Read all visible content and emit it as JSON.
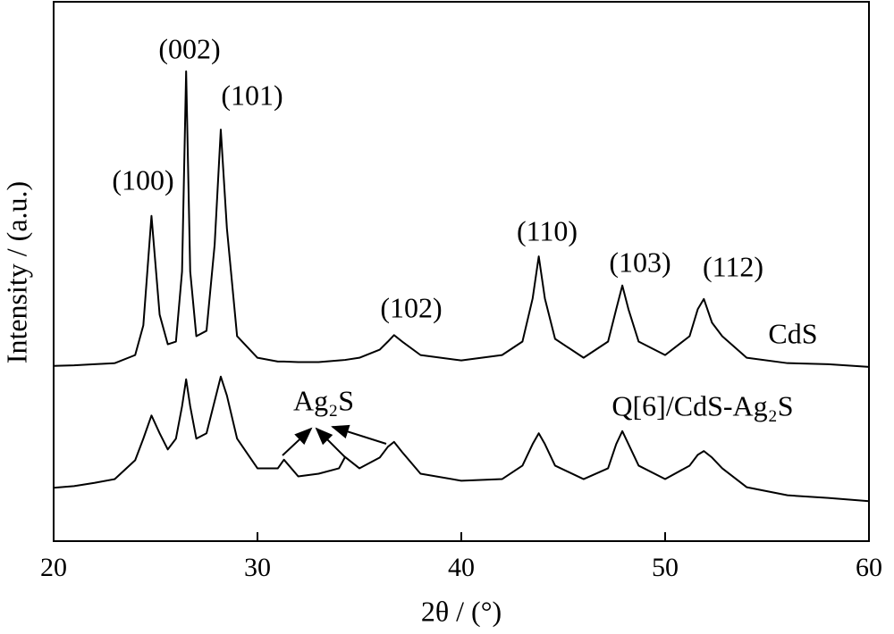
{
  "chart_data": {
    "type": "line",
    "xlabel": "2θ / (°)",
    "ylabel": "Intensity / (a.u.)",
    "xlim": [
      20,
      60
    ],
    "xticks": [
      20,
      30,
      40,
      50,
      60
    ],
    "ylim": [
      0,
      100
    ],
    "yticks": [],
    "x": [
      20,
      21,
      22,
      23,
      24,
      24.4,
      24.8,
      25.2,
      25.6,
      26.0,
      26.3,
      26.5,
      26.7,
      27.0,
      27.5,
      27.9,
      28.2,
      28.5,
      29.0,
      30,
      31,
      31.3,
      32,
      33,
      34,
      34.3,
      35,
      36,
      36.4,
      36.7,
      37.1,
      38,
      40,
      42,
      43,
      43.5,
      43.8,
      44.1,
      44.6,
      46,
      47.2,
      47.6,
      47.9,
      48.2,
      48.7,
      50,
      51.2,
      51.6,
      51.9,
      52.3,
      52.8,
      54,
      56,
      58,
      60
    ],
    "series": [
      {
        "name": "CdS",
        "color": "#000000",
        "values": [
          32.5,
          32.6,
          32.8,
          33.0,
          34.5,
          40,
          60.3,
          42,
          36.5,
          37,
          50,
          87.1,
          50,
          38,
          39,
          55,
          76.3,
          58,
          38,
          34,
          33.3,
          33.3,
          33.2,
          33.2,
          33.5,
          33.6,
          34,
          35.5,
          37,
          38.2,
          37,
          34.5,
          33.5,
          34.5,
          37,
          45,
          52.8,
          45,
          37.5,
          34,
          37,
          43,
          47.4,
          43,
          37,
          34.5,
          38,
          43,
          44.9,
          40.5,
          38,
          34,
          33,
          32.8,
          32.3
        ]
      },
      {
        "name": "Q[6]/CdS-Ag₂S",
        "color": "#000000",
        "values": [
          9.9,
          10.2,
          10.8,
          11.5,
          15,
          19,
          23.3,
          20,
          17,
          19,
          25,
          30.0,
          25,
          19,
          20,
          26,
          30.5,
          27,
          19,
          13.5,
          13.5,
          15.1,
          12,
          12.5,
          13.5,
          15.6,
          13.5,
          15.5,
          17.5,
          18.4,
          16.5,
          12.5,
          11.2,
          11.5,
          14,
          18,
          20,
          18,
          14,
          11.5,
          13.5,
          18,
          20.4,
          18,
          14,
          11.5,
          14,
          16,
          16.7,
          15.5,
          13.5,
          10,
          8.5,
          8,
          7.4
        ]
      }
    ],
    "annotations": [
      "(100)",
      "(002)",
      "(101)",
      "(102)",
      "(110)",
      "(103)",
      "(112)",
      "Ag₂S"
    ]
  }
}
